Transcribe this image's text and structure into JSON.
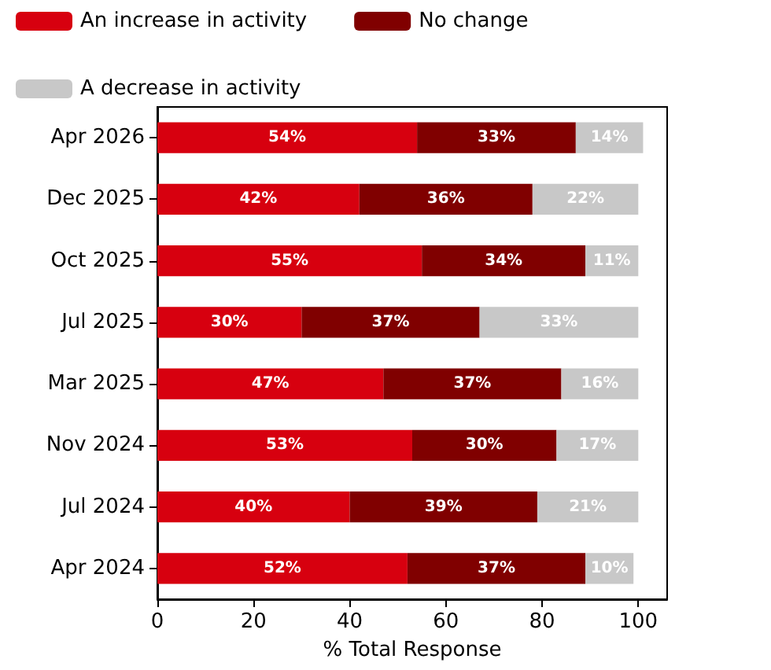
{
  "chart_data": {
    "type": "bar",
    "orientation": "horizontal",
    "stacked": true,
    "xlabel": "% Total Response",
    "categories": [
      "Apr 2026",
      "Dec 2025",
      "Oct 2025",
      "Jul 2025",
      "Mar 2025",
      "Nov 2024",
      "Jul 2024",
      "Apr 2024"
    ],
    "series": [
      {
        "name": "An increase in activity",
        "color": "#d7000f",
        "values": [
          54,
          42,
          55,
          30,
          47,
          53,
          40,
          52
        ],
        "value_labels": [
          "54%",
          "42%",
          "55%",
          "30%",
          "47%",
          "53%",
          "40%",
          "52%"
        ]
      },
      {
        "name": "No change",
        "color": "#800000",
        "values": [
          33,
          36,
          34,
          37,
          37,
          30,
          39,
          37
        ],
        "value_labels": [
          "33%",
          "36%",
          "34%",
          "37%",
          "37%",
          "30%",
          "39%",
          "37%"
        ]
      },
      {
        "name": "A decrease in activity",
        "color": "#c8c8c8",
        "values": [
          14,
          22,
          11,
          33,
          16,
          17,
          21,
          10
        ],
        "value_labels": [
          "14%",
          "22%",
          "11%",
          "33%",
          "16%",
          "17%",
          "21%",
          "10%"
        ]
      }
    ],
    "xlim": [
      0,
      106
    ],
    "xticks": [
      0,
      20,
      40,
      60,
      80,
      100
    ],
    "grid": false,
    "legend": "top"
  }
}
